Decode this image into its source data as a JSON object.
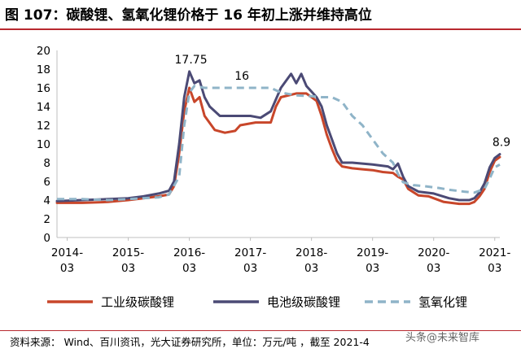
{
  "figure": {
    "title": "图 107：碳酸锂、氢氧化锂价格于 16 年初上涨并维持高位",
    "source": "资料来源：  Wind、百川资讯，光大证券研究所，单位：万元/吨 ，截至 2021-4",
    "watermark": "头条@未来智库"
  },
  "chart_data": {
    "type": "line",
    "title": "图 107：碳酸锂、氢氧化锂价格于 16 年初上涨并维持高位",
    "xlabel": "",
    "ylabel": "",
    "unit": "万元/吨",
    "x_range": [
      "2014-01",
      "2021-04"
    ],
    "ylim": [
      0,
      20
    ],
    "yticks": [
      0,
      2,
      4,
      6,
      8,
      10,
      12,
      14,
      16,
      18,
      20
    ],
    "xticks": [
      {
        "date": "2014-03",
        "label": [
          "2014-",
          "03"
        ]
      },
      {
        "date": "2015-03",
        "label": [
          "2015-",
          "03"
        ]
      },
      {
        "date": "2016-03",
        "label": [
          "2016-",
          "03"
        ]
      },
      {
        "date": "2017-03",
        "label": [
          "2017-",
          "03"
        ]
      },
      {
        "date": "2018-03",
        "label": [
          "2018-",
          "03"
        ]
      },
      {
        "date": "2019-03",
        "label": [
          "2019-",
          "03"
        ]
      },
      {
        "date": "2020-03",
        "label": [
          "2020-",
          "03"
        ]
      },
      {
        "date": "2021-03",
        "label": [
          "2021-",
          "03"
        ]
      }
    ],
    "grid": false,
    "legend_position": "bottom",
    "series": [
      {
        "name": "工业级碳酸锂",
        "color": "#c8462a",
        "style": "solid",
        "points": [
          [
            "2014-01",
            3.7
          ],
          [
            "2014-06",
            3.7
          ],
          [
            "2014-11",
            3.8
          ],
          [
            "2015-03",
            4.0
          ],
          [
            "2015-06",
            4.2
          ],
          [
            "2015-09",
            4.4
          ],
          [
            "2015-11",
            4.6
          ],
          [
            "2015-12",
            5.5
          ],
          [
            "2016-01",
            9.0
          ],
          [
            "2016-02",
            13.5
          ],
          [
            "2016-03",
            16.0
          ],
          [
            "2016-04",
            14.5
          ],
          [
            "2016-05",
            15.0
          ],
          [
            "2016-06",
            13.0
          ],
          [
            "2016-08",
            11.5
          ],
          [
            "2016-10",
            11.2
          ],
          [
            "2016-12",
            11.4
          ],
          [
            "2017-01",
            12.0
          ],
          [
            "2017-04",
            12.3
          ],
          [
            "2017-07",
            12.3
          ],
          [
            "2017-08",
            14.0
          ],
          [
            "2017-09",
            15.0
          ],
          [
            "2017-12",
            15.4
          ],
          [
            "2018-02",
            15.4
          ],
          [
            "2018-04",
            14.6
          ],
          [
            "2018-05",
            13.0
          ],
          [
            "2018-06",
            11.0
          ],
          [
            "2018-07",
            9.5
          ],
          [
            "2018-08",
            8.2
          ],
          [
            "2018-09",
            7.6
          ],
          [
            "2018-11",
            7.4
          ],
          [
            "2019-01",
            7.3
          ],
          [
            "2019-03",
            7.2
          ],
          [
            "2019-05",
            7.0
          ],
          [
            "2019-07",
            6.9
          ],
          [
            "2019-08",
            6.5
          ],
          [
            "2019-09",
            6.2
          ],
          [
            "2019-10",
            5.2
          ],
          [
            "2019-12",
            4.5
          ],
          [
            "2020-02",
            4.4
          ],
          [
            "2020-03",
            4.2
          ],
          [
            "2020-05",
            3.8
          ],
          [
            "2020-08",
            3.6
          ],
          [
            "2020-10",
            3.6
          ],
          [
            "2020-11",
            3.8
          ],
          [
            "2020-12",
            4.4
          ],
          [
            "2021-01",
            5.2
          ],
          [
            "2021-02",
            7.0
          ],
          [
            "2021-03",
            8.2
          ],
          [
            "2021-04",
            8.6
          ]
        ]
      },
      {
        "name": "电池级碳酸锂",
        "color": "#4b4a75",
        "style": "solid",
        "points": [
          [
            "2014-01",
            3.9
          ],
          [
            "2014-06",
            4.0
          ],
          [
            "2014-11",
            4.1
          ],
          [
            "2015-03",
            4.2
          ],
          [
            "2015-06",
            4.4
          ],
          [
            "2015-09",
            4.7
          ],
          [
            "2015-11",
            5.0
          ],
          [
            "2015-12",
            6.0
          ],
          [
            "2016-01",
            10.0
          ],
          [
            "2016-02",
            15.0
          ],
          [
            "2016-03",
            17.75
          ],
          [
            "2016-04",
            16.5
          ],
          [
            "2016-05",
            16.8
          ],
          [
            "2016-06",
            15.0
          ],
          [
            "2016-07",
            14.0
          ],
          [
            "2016-09",
            13.0
          ],
          [
            "2016-12",
            13.0
          ],
          [
            "2017-03",
            13.0
          ],
          [
            "2017-05",
            12.8
          ],
          [
            "2017-07",
            13.5
          ],
          [
            "2017-09",
            16.0
          ],
          [
            "2017-11",
            17.5
          ],
          [
            "2017-12",
            16.5
          ],
          [
            "2018-01",
            17.5
          ],
          [
            "2018-02",
            16.2
          ],
          [
            "2018-04",
            15.0
          ],
          [
            "2018-05",
            14.0
          ],
          [
            "2018-06",
            12.0
          ],
          [
            "2018-07",
            10.5
          ],
          [
            "2018-08",
            9.0
          ],
          [
            "2018-09",
            8.0
          ],
          [
            "2018-11",
            8.0
          ],
          [
            "2019-01",
            7.9
          ],
          [
            "2019-03",
            7.8
          ],
          [
            "2019-06",
            7.6
          ],
          [
            "2019-07",
            7.3
          ],
          [
            "2019-08",
            7.9
          ],
          [
            "2019-09",
            6.5
          ],
          [
            "2019-10",
            5.5
          ],
          [
            "2019-12",
            4.9
          ],
          [
            "2020-03",
            4.7
          ],
          [
            "2020-06",
            4.2
          ],
          [
            "2020-08",
            4.0
          ],
          [
            "2020-10",
            4.0
          ],
          [
            "2020-11",
            4.2
          ],
          [
            "2020-12",
            4.8
          ],
          [
            "2021-01",
            5.8
          ],
          [
            "2021-02",
            7.5
          ],
          [
            "2021-03",
            8.5
          ],
          [
            "2021-04",
            8.9
          ]
        ]
      },
      {
        "name": "氢氧化锂",
        "color": "#8fb4c8",
        "style": "dashed",
        "points": [
          [
            "2014-01",
            4.1
          ],
          [
            "2014-06",
            4.1
          ],
          [
            "2014-11",
            4.0
          ],
          [
            "2015-03",
            4.1
          ],
          [
            "2015-09",
            4.3
          ],
          [
            "2015-11",
            4.6
          ],
          [
            "2016-01",
            6.5
          ],
          [
            "2016-02",
            12.0
          ],
          [
            "2016-03",
            15.5
          ],
          [
            "2016-04",
            16.2
          ],
          [
            "2016-06",
            16.0
          ],
          [
            "2016-09",
            16.0
          ],
          [
            "2017-01",
            16.0
          ],
          [
            "2017-04",
            16.0
          ],
          [
            "2017-07",
            16.0
          ],
          [
            "2017-09",
            15.5
          ],
          [
            "2017-12",
            15.2
          ],
          [
            "2018-03",
            15.1
          ],
          [
            "2018-05",
            15.0
          ],
          [
            "2018-07",
            15.0
          ],
          [
            "2018-09",
            14.5
          ],
          [
            "2018-11",
            13.0
          ],
          [
            "2019-01",
            12.0
          ],
          [
            "2019-03",
            10.5
          ],
          [
            "2019-05",
            9.0
          ],
          [
            "2019-07",
            8.0
          ],
          [
            "2019-08",
            6.8
          ],
          [
            "2019-09",
            5.9
          ],
          [
            "2019-11",
            5.6
          ],
          [
            "2020-01",
            5.5
          ],
          [
            "2020-04",
            5.3
          ],
          [
            "2020-06",
            5.1
          ],
          [
            "2020-09",
            4.9
          ],
          [
            "2020-11",
            4.8
          ],
          [
            "2021-01",
            5.2
          ],
          [
            "2021-02",
            6.3
          ],
          [
            "2021-03",
            7.5
          ],
          [
            "2021-04",
            7.8
          ]
        ]
      }
    ],
    "annotations": [
      {
        "text": "17.75",
        "date": "2016-03",
        "value": 17.75
      },
      {
        "text": "16",
        "date": "2017-01",
        "value": 16
      },
      {
        "text": "8.9",
        "date": "2021-04",
        "value": 8.9
      }
    ]
  }
}
